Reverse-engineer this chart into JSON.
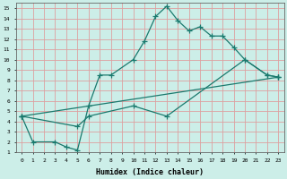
{
  "xlabel": "Humidex (Indice chaleur)",
  "ylabel": "",
  "bg_color": "#cceee8",
  "grid_color": "#dda0a0",
  "line_color": "#1a7a6e",
  "xlim": [
    -0.5,
    23.5
  ],
  "ylim": [
    1,
    15.5
  ],
  "xticks": [
    0,
    1,
    2,
    3,
    4,
    5,
    6,
    7,
    8,
    9,
    10,
    11,
    12,
    13,
    14,
    15,
    16,
    17,
    18,
    19,
    20,
    21,
    22,
    23
  ],
  "yticks": [
    1,
    2,
    3,
    4,
    5,
    6,
    7,
    8,
    9,
    10,
    11,
    12,
    13,
    14,
    15
  ],
  "line1_x": [
    0,
    1,
    3,
    4,
    5,
    6,
    7,
    8,
    10,
    11,
    12,
    13,
    14,
    15,
    16,
    17,
    18,
    19,
    20,
    22,
    23
  ],
  "line1_y": [
    4.5,
    2.0,
    2.0,
    1.5,
    1.2,
    5.5,
    8.5,
    8.5,
    10.0,
    11.8,
    14.2,
    15.2,
    13.8,
    12.8,
    13.2,
    12.3,
    12.3,
    11.2,
    10.0,
    8.5,
    8.3
  ],
  "line2_x": [
    0,
    5,
    6,
    10,
    13,
    20,
    22,
    23
  ],
  "line2_y": [
    4.5,
    3.5,
    4.5,
    5.5,
    4.5,
    10.0,
    8.5,
    8.3
  ],
  "line3_x": [
    0,
    23
  ],
  "line3_y": [
    4.5,
    8.3
  ]
}
